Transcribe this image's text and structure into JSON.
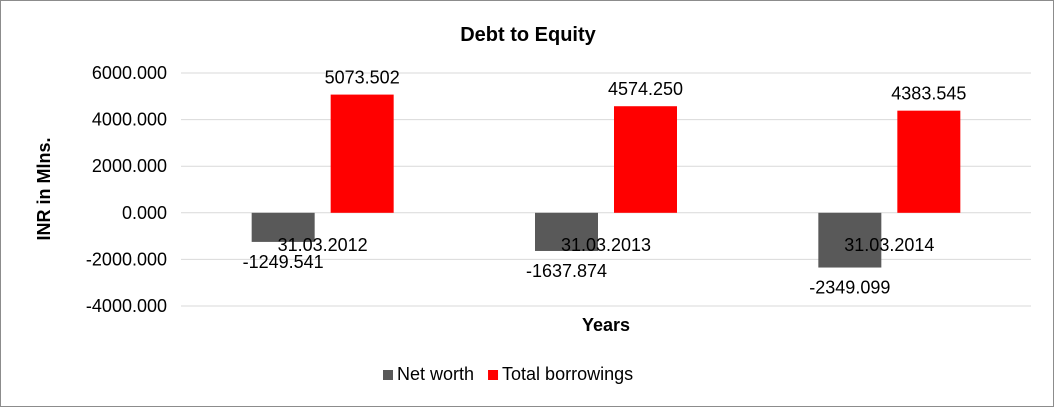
{
  "chart_data": {
    "type": "bar",
    "title": "Debt to Equity",
    "xlabel": "Years",
    "ylabel": "INR in Mlns.",
    "categories": [
      "31.03.2012",
      "31.03.2013",
      "31.03.2014"
    ],
    "series": [
      {
        "name": "Net worth",
        "values": [
          -1249.541,
          -1637.874,
          -2349.099
        ],
        "labels": [
          "-1249.541",
          "-1637.874",
          "-2349.099"
        ],
        "color": "#595959"
      },
      {
        "name": "Total borrowings",
        "values": [
          5073.502,
          4574.25,
          4383.545
        ],
        "labels": [
          "5073.502",
          "4574.250",
          "4383.545"
        ],
        "color": "#ff0000"
      }
    ],
    "ylim": [
      -4000,
      6000
    ],
    "yticks": [
      6000,
      4000,
      2000,
      0,
      -2000,
      -4000
    ],
    "ytick_labels": [
      "6000.000",
      "4000.000",
      "2000.000",
      "0.000",
      "-2000.000",
      "-4000.000"
    ],
    "grid": true,
    "legend": "bottom"
  },
  "colors": {
    "grid": "#d9d9d9",
    "border": "#8c8c8c"
  }
}
